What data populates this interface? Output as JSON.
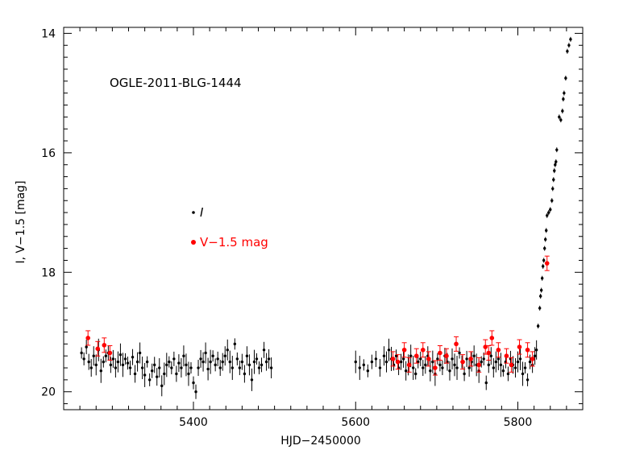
{
  "chart_data": {
    "type": "scatter",
    "title": "OGLE-2011-BLG-1444",
    "xlabel": "HJD−2450000",
    "ylabel": "I, V−1.5 [mag]",
    "xlim": [
      5240,
      5880
    ],
    "ylim": [
      20.3,
      13.9
    ],
    "y_inverted": true,
    "x_ticks": [
      5400,
      5600,
      5800
    ],
    "y_ticks": [
      14,
      16,
      18,
      20
    ],
    "grid": false,
    "legend": {
      "placement": "center-left",
      "entries": [
        {
          "label": "I",
          "color": "#000000",
          "italic": true
        },
        {
          "label": "V−1.5 mag",
          "color": "#ff0000"
        }
      ]
    },
    "series": [
      {
        "name": "I",
        "color": "#000000",
        "error_bars": true,
        "points": [
          [
            5262,
            19.35
          ],
          [
            5265,
            19.45
          ],
          [
            5268,
            19.25
          ],
          [
            5271,
            19.5
          ],
          [
            5274,
            19.6
          ],
          [
            5277,
            19.4
          ],
          [
            5280,
            19.55
          ],
          [
            5283,
            19.3
          ],
          [
            5286,
            19.65
          ],
          [
            5289,
            19.5
          ],
          [
            5292,
            19.4
          ],
          [
            5295,
            19.35
          ],
          [
            5298,
            19.55
          ],
          [
            5301,
            19.45
          ],
          [
            5304,
            19.6
          ],
          [
            5307,
            19.5
          ],
          [
            5310,
            19.38
          ],
          [
            5313,
            19.55
          ],
          [
            5316,
            19.45
          ],
          [
            5319,
            19.52
          ],
          [
            5322,
            19.6
          ],
          [
            5325,
            19.42
          ],
          [
            5328,
            19.7
          ],
          [
            5331,
            19.5
          ],
          [
            5334,
            19.35
          ],
          [
            5337,
            19.6
          ],
          [
            5340,
            19.72
          ],
          [
            5343,
            19.5
          ],
          [
            5346,
            19.8
          ],
          [
            5349,
            19.65
          ],
          [
            5352,
            19.55
          ],
          [
            5355,
            19.75
          ],
          [
            5358,
            19.6
          ],
          [
            5361,
            19.9
          ],
          [
            5364,
            19.7
          ],
          [
            5367,
            19.55
          ],
          [
            5370,
            19.5
          ],
          [
            5373,
            19.6
          ],
          [
            5376,
            19.45
          ],
          [
            5379,
            19.7
          ],
          [
            5382,
            19.52
          ],
          [
            5385,
            19.6
          ],
          [
            5388,
            19.4
          ],
          [
            5391,
            19.55
          ],
          [
            5394,
            19.7
          ],
          [
            5397,
            19.6
          ],
          [
            5400,
            19.85
          ],
          [
            5403,
            20.0
          ],
          [
            5406,
            19.6
          ],
          [
            5409,
            19.45
          ],
          [
            5412,
            19.5
          ],
          [
            5415,
            19.35
          ],
          [
            5418,
            19.62
          ],
          [
            5421,
            19.5
          ],
          [
            5424,
            19.4
          ],
          [
            5427,
            19.55
          ],
          [
            5430,
            19.45
          ],
          [
            5433,
            19.6
          ],
          [
            5436,
            19.5
          ],
          [
            5439,
            19.4
          ],
          [
            5442,
            19.3
          ],
          [
            5445,
            19.5
          ],
          [
            5448,
            19.6
          ],
          [
            5451,
            19.2
          ],
          [
            5454,
            19.45
          ],
          [
            5457,
            19.6
          ],
          [
            5460,
            19.5
          ],
          [
            5463,
            19.7
          ],
          [
            5466,
            19.4
          ],
          [
            5469,
            19.55
          ],
          [
            5472,
            19.8
          ],
          [
            5475,
            19.5
          ],
          [
            5478,
            19.45
          ],
          [
            5481,
            19.6
          ],
          [
            5484,
            19.55
          ],
          [
            5487,
            19.3
          ],
          [
            5490,
            19.5
          ],
          [
            5493,
            19.45
          ],
          [
            5496,
            19.6
          ],
          [
            5600,
            19.5
          ],
          [
            5605,
            19.6
          ],
          [
            5610,
            19.55
          ],
          [
            5615,
            19.65
          ],
          [
            5620,
            19.5
          ],
          [
            5625,
            19.45
          ],
          [
            5630,
            19.6
          ],
          [
            5635,
            19.4
          ],
          [
            5638,
            19.5
          ],
          [
            5641,
            19.3
          ],
          [
            5644,
            19.45
          ],
          [
            5647,
            19.55
          ],
          [
            5650,
            19.4
          ],
          [
            5653,
            19.6
          ],
          [
            5656,
            19.5
          ],
          [
            5659,
            19.45
          ],
          [
            5662,
            19.65
          ],
          [
            5665,
            19.55
          ],
          [
            5668,
            19.4
          ],
          [
            5671,
            19.6
          ],
          [
            5674,
            19.7
          ],
          [
            5677,
            19.5
          ],
          [
            5680,
            19.45
          ],
          [
            5683,
            19.6
          ],
          [
            5686,
            19.55
          ],
          [
            5689,
            19.4
          ],
          [
            5692,
            19.65
          ],
          [
            5695,
            19.5
          ],
          [
            5698,
            19.7
          ],
          [
            5701,
            19.45
          ],
          [
            5704,
            19.55
          ],
          [
            5707,
            19.6
          ],
          [
            5710,
            19.4
          ],
          [
            5713,
            19.5
          ],
          [
            5716,
            19.65
          ],
          [
            5719,
            19.45
          ],
          [
            5722,
            19.55
          ],
          [
            5725,
            19.6
          ],
          [
            5728,
            19.35
          ],
          [
            5731,
            19.5
          ],
          [
            5734,
            19.7
          ],
          [
            5737,
            19.45
          ],
          [
            5740,
            19.6
          ],
          [
            5743,
            19.5
          ],
          [
            5746,
            19.4
          ],
          [
            5749,
            19.55
          ],
          [
            5752,
            19.65
          ],
          [
            5755,
            19.5
          ],
          [
            5758,
            19.45
          ],
          [
            5761,
            19.85
          ],
          [
            5764,
            19.55
          ],
          [
            5767,
            19.4
          ],
          [
            5770,
            19.6
          ],
          [
            5773,
            19.5
          ],
          [
            5776,
            19.45
          ],
          [
            5779,
            19.55
          ],
          [
            5782,
            19.65
          ],
          [
            5785,
            19.5
          ],
          [
            5788,
            19.7
          ],
          [
            5791,
            19.45
          ],
          [
            5794,
            19.55
          ],
          [
            5797,
            19.6
          ],
          [
            5800,
            19.5
          ],
          [
            5803,
            19.45
          ],
          [
            5806,
            19.7
          ],
          [
            5809,
            19.6
          ],
          [
            5812,
            19.8
          ],
          [
            5815,
            19.5
          ],
          [
            5818,
            19.55
          ],
          [
            5821,
            19.4
          ],
          [
            5823,
            19.3
          ],
          [
            5825,
            18.9
          ],
          [
            5827,
            18.6
          ],
          [
            5828,
            18.4
          ],
          [
            5829,
            18.3
          ],
          [
            5830,
            18.1
          ],
          [
            5831,
            17.9
          ],
          [
            5832,
            17.8
          ],
          [
            5833,
            17.6
          ],
          [
            5834,
            17.45
          ],
          [
            5835,
            17.3
          ],
          [
            5836,
            17.05
          ],
          [
            5838,
            17.0
          ],
          [
            5840,
            16.95
          ],
          [
            5842,
            16.8
          ],
          [
            5843,
            16.6
          ],
          [
            5844,
            16.45
          ],
          [
            5845,
            16.3
          ],
          [
            5846,
            16.2
          ],
          [
            5847,
            16.15
          ],
          [
            5848,
            15.95
          ],
          [
            5851,
            15.4
          ],
          [
            5853,
            15.45
          ],
          [
            5855,
            15.3
          ],
          [
            5856,
            15.1
          ],
          [
            5857,
            15.0
          ],
          [
            5859,
            14.75
          ],
          [
            5861,
            14.3
          ],
          [
            5863,
            14.2
          ],
          [
            5865,
            14.1
          ]
        ]
      },
      {
        "name": "V−1.5 mag",
        "color": "#ff0000",
        "error_bars": true,
        "points": [
          [
            5270,
            19.1
          ],
          [
            5282,
            19.28
          ],
          [
            5290,
            19.22
          ],
          [
            5297,
            19.35
          ],
          [
            5646,
            19.45
          ],
          [
            5652,
            19.5
          ],
          [
            5660,
            19.3
          ],
          [
            5666,
            19.55
          ],
          [
            5675,
            19.4
          ],
          [
            5683,
            19.3
          ],
          [
            5690,
            19.45
          ],
          [
            5698,
            19.6
          ],
          [
            5704,
            19.35
          ],
          [
            5712,
            19.4
          ],
          [
            5724,
            19.2
          ],
          [
            5732,
            19.5
          ],
          [
            5742,
            19.45
          ],
          [
            5752,
            19.55
          ],
          [
            5760,
            19.25
          ],
          [
            5764,
            19.35
          ],
          [
            5768,
            19.1
          ],
          [
            5776,
            19.3
          ],
          [
            5786,
            19.4
          ],
          [
            5792,
            19.55
          ],
          [
            5802,
            19.25
          ],
          [
            5812,
            19.3
          ],
          [
            5818,
            19.45
          ],
          [
            5836,
            17.85
          ]
        ]
      }
    ]
  }
}
